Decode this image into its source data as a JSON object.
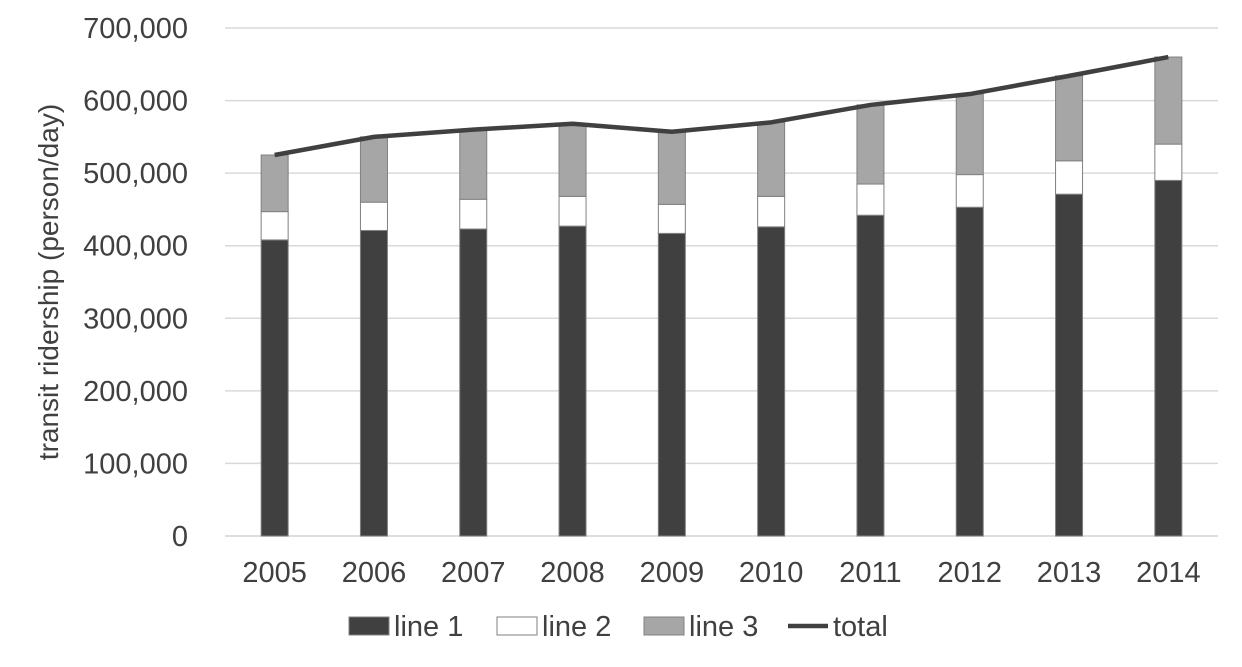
{
  "chart_data": {
    "type": "bar",
    "stacked": true,
    "title": "",
    "xlabel": "",
    "ylabel": "transit ridership (person/day)",
    "ylim": [
      0,
      700000
    ],
    "yticks": [
      0,
      100000,
      200000,
      300000,
      400000,
      500000,
      600000,
      700000
    ],
    "ytick_labels": [
      "0",
      "100,000",
      "200,000",
      "300,000",
      "400,000",
      "500,000",
      "600,000",
      "700,000"
    ],
    "grid": true,
    "legend_position": "bottom",
    "categories": [
      "2005",
      "2006",
      "2007",
      "2008",
      "2009",
      "2010",
      "2011",
      "2012",
      "2013",
      "2014"
    ],
    "series": [
      {
        "name": "line 1",
        "kind": "bar",
        "color": "#404040",
        "values": [
          408000,
          421000,
          423000,
          427000,
          417000,
          426000,
          442000,
          453000,
          471000,
          490000
        ]
      },
      {
        "name": "line 2",
        "kind": "bar",
        "color": "#ffffff",
        "values": [
          39000,
          39000,
          41000,
          41000,
          40000,
          42000,
          43000,
          45000,
          46000,
          50000
        ]
      },
      {
        "name": "line 3",
        "kind": "bar",
        "color": "#a6a6a6",
        "values": [
          78000,
          90000,
          96000,
          100000,
          100000,
          102000,
          109000,
          111000,
          117000,
          120000
        ]
      },
      {
        "name": "total",
        "kind": "line",
        "color": "#404040",
        "values": [
          525000,
          550000,
          560000,
          568000,
          557000,
          570000,
          594000,
          609000,
          634000,
          660000
        ]
      }
    ]
  }
}
